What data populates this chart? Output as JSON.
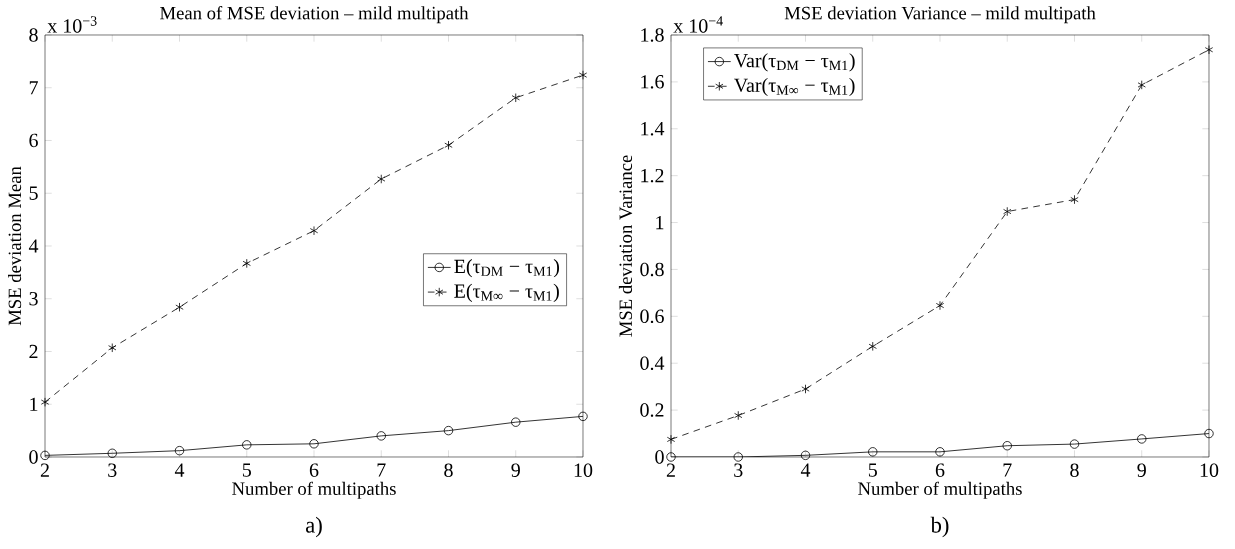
{
  "chart_data": [
    {
      "type": "line",
      "title": "Mean of MSE deviation – mild multipath",
      "xlabel": "Number of multipaths",
      "ylabel": "MSE deviation Mean",
      "x": [
        2,
        3,
        4,
        5,
        6,
        7,
        8,
        9,
        10
      ],
      "xlim": [
        2,
        10
      ],
      "xticks": [
        2,
        3,
        4,
        5,
        6,
        7,
        8,
        9,
        10
      ],
      "ylim": [
        0,
        8
      ],
      "yticks": [
        0,
        1,
        2,
        3,
        4,
        5,
        6,
        7,
        8
      ],
      "legend": "right",
      "grid": false,
      "annotations": [
        "x 10$^{−3}$",
        "a)"
      ],
      "series": [
        {
          "name": "E(τ$_{DM}$ − τ$_{M1}$)",
          "color": "#000000",
          "marker": "circle",
          "line_style": "solid",
          "values": [
            0.03,
            0.07,
            0.12,
            0.23,
            0.25,
            0.4,
            0.5,
            0.66,
            0.77
          ]
        },
        {
          "name": "E(τ$_{M∞}$ − τ$_{M1}$)",
          "color": "#000000",
          "marker": "cross",
          "line_style": "dashed",
          "values": [
            1.04,
            2.07,
            2.84,
            3.67,
            4.29,
            5.27,
            5.91,
            6.81,
            7.24
          ]
        }
      ]
    },
    {
      "type": "line",
      "title": "MSE deviation Variance – mild multipath",
      "xlabel": "Number of multipaths",
      "ylabel": "MSE deviation Variance",
      "x": [
        2,
        3,
        4,
        5,
        6,
        7,
        8,
        9,
        10
      ],
      "xlim": [
        2,
        10
      ],
      "xticks": [
        2,
        3,
        4,
        5,
        6,
        7,
        8,
        9,
        10
      ],
      "ylim": [
        0,
        1.8
      ],
      "yticks": [
        0,
        0.2,
        0.4,
        0.6,
        0.8,
        1,
        1.2,
        1.4,
        1.6,
        1.8
      ],
      "legend": "top left",
      "grid": false,
      "annotations": [
        "x 10$^{−4}$",
        "b)"
      ],
      "series": [
        {
          "name": "Var(τ$_{DM}$ − τ$_{M1}$)",
          "color": "#000000",
          "marker": "circle",
          "line_style": "solid",
          "values": [
            0.0,
            0.0,
            0.007,
            0.022,
            0.022,
            0.048,
            0.055,
            0.077,
            0.1
          ]
        },
        {
          "name": "Var(τ$_{M∞}$ − τ$_{M1}$)",
          "color": "#000000",
          "marker": "cross",
          "line_style": "dashed",
          "values": [
            0.075,
            0.177,
            0.29,
            0.472,
            0.646,
            1.047,
            1.098,
            1.587,
            1.737
          ]
        }
      ]
    }
  ]
}
